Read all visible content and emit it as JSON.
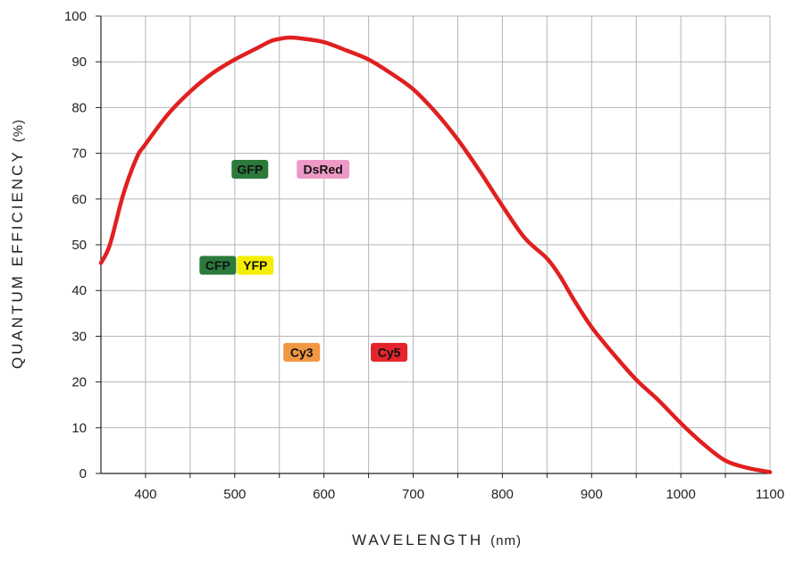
{
  "chart_data": {
    "type": "line",
    "xlabel": {
      "main": "WAVELENGTH",
      "unit": "(nm)"
    },
    "ylabel": {
      "main": "QUANTUM EFFICIENCY",
      "unit": "(%)"
    },
    "xlim": [
      350,
      1100
    ],
    "ylim": [
      0,
      100
    ],
    "xticks": [
      400,
      500,
      600,
      700,
      800,
      900,
      1000,
      1100
    ],
    "yticks": [
      0,
      10,
      20,
      30,
      40,
      50,
      60,
      70,
      80,
      90,
      100
    ],
    "grid": true,
    "series": [
      {
        "color": "#e02020",
        "x": [
          350,
          360,
          375,
          390,
          400,
          425,
          450,
          475,
          500,
          525,
          540,
          550,
          560,
          575,
          600,
          625,
          650,
          675,
          700,
          725,
          750,
          775,
          800,
          825,
          850,
          865,
          880,
          900,
          925,
          950,
          975,
          1000,
          1025,
          1050,
          1075,
          1100
        ],
        "y": [
          46,
          50,
          61,
          69,
          72,
          78.5,
          83.5,
          87.5,
          90.5,
          93,
          94.5,
          95,
          95.3,
          95.1,
          94.3,
          92.5,
          90.5,
          87.5,
          84,
          79,
          73,
          66,
          58.5,
          51.5,
          47,
          43,
          38,
          32,
          26,
          20.5,
          16,
          11,
          6.5,
          2.8,
          1.2,
          0.3
        ]
      }
    ],
    "annotations": [
      {
        "text": "GFP",
        "x": 517,
        "y": 66.5,
        "bg": "#2b7a3b",
        "fg": "#111111"
      },
      {
        "text": "DsRed",
        "x": 599,
        "y": 66.5,
        "bg": "#ee9ac7",
        "fg": "#111111"
      },
      {
        "text": "CFP",
        "x": 481,
        "y": 45.5,
        "bg": "#2b7a3b",
        "fg": "#111111"
      },
      {
        "text": "YFP",
        "x": 523,
        "y": 45.5,
        "bg": "#f4ee00",
        "fg": "#111111"
      },
      {
        "text": "Cy3",
        "x": 575,
        "y": 26.5,
        "bg": "#f29741",
        "fg": "#111111"
      },
      {
        "text": "Cy5",
        "x": 673,
        "y": 26.5,
        "bg": "#e3242b",
        "fg": "#111111"
      }
    ]
  }
}
